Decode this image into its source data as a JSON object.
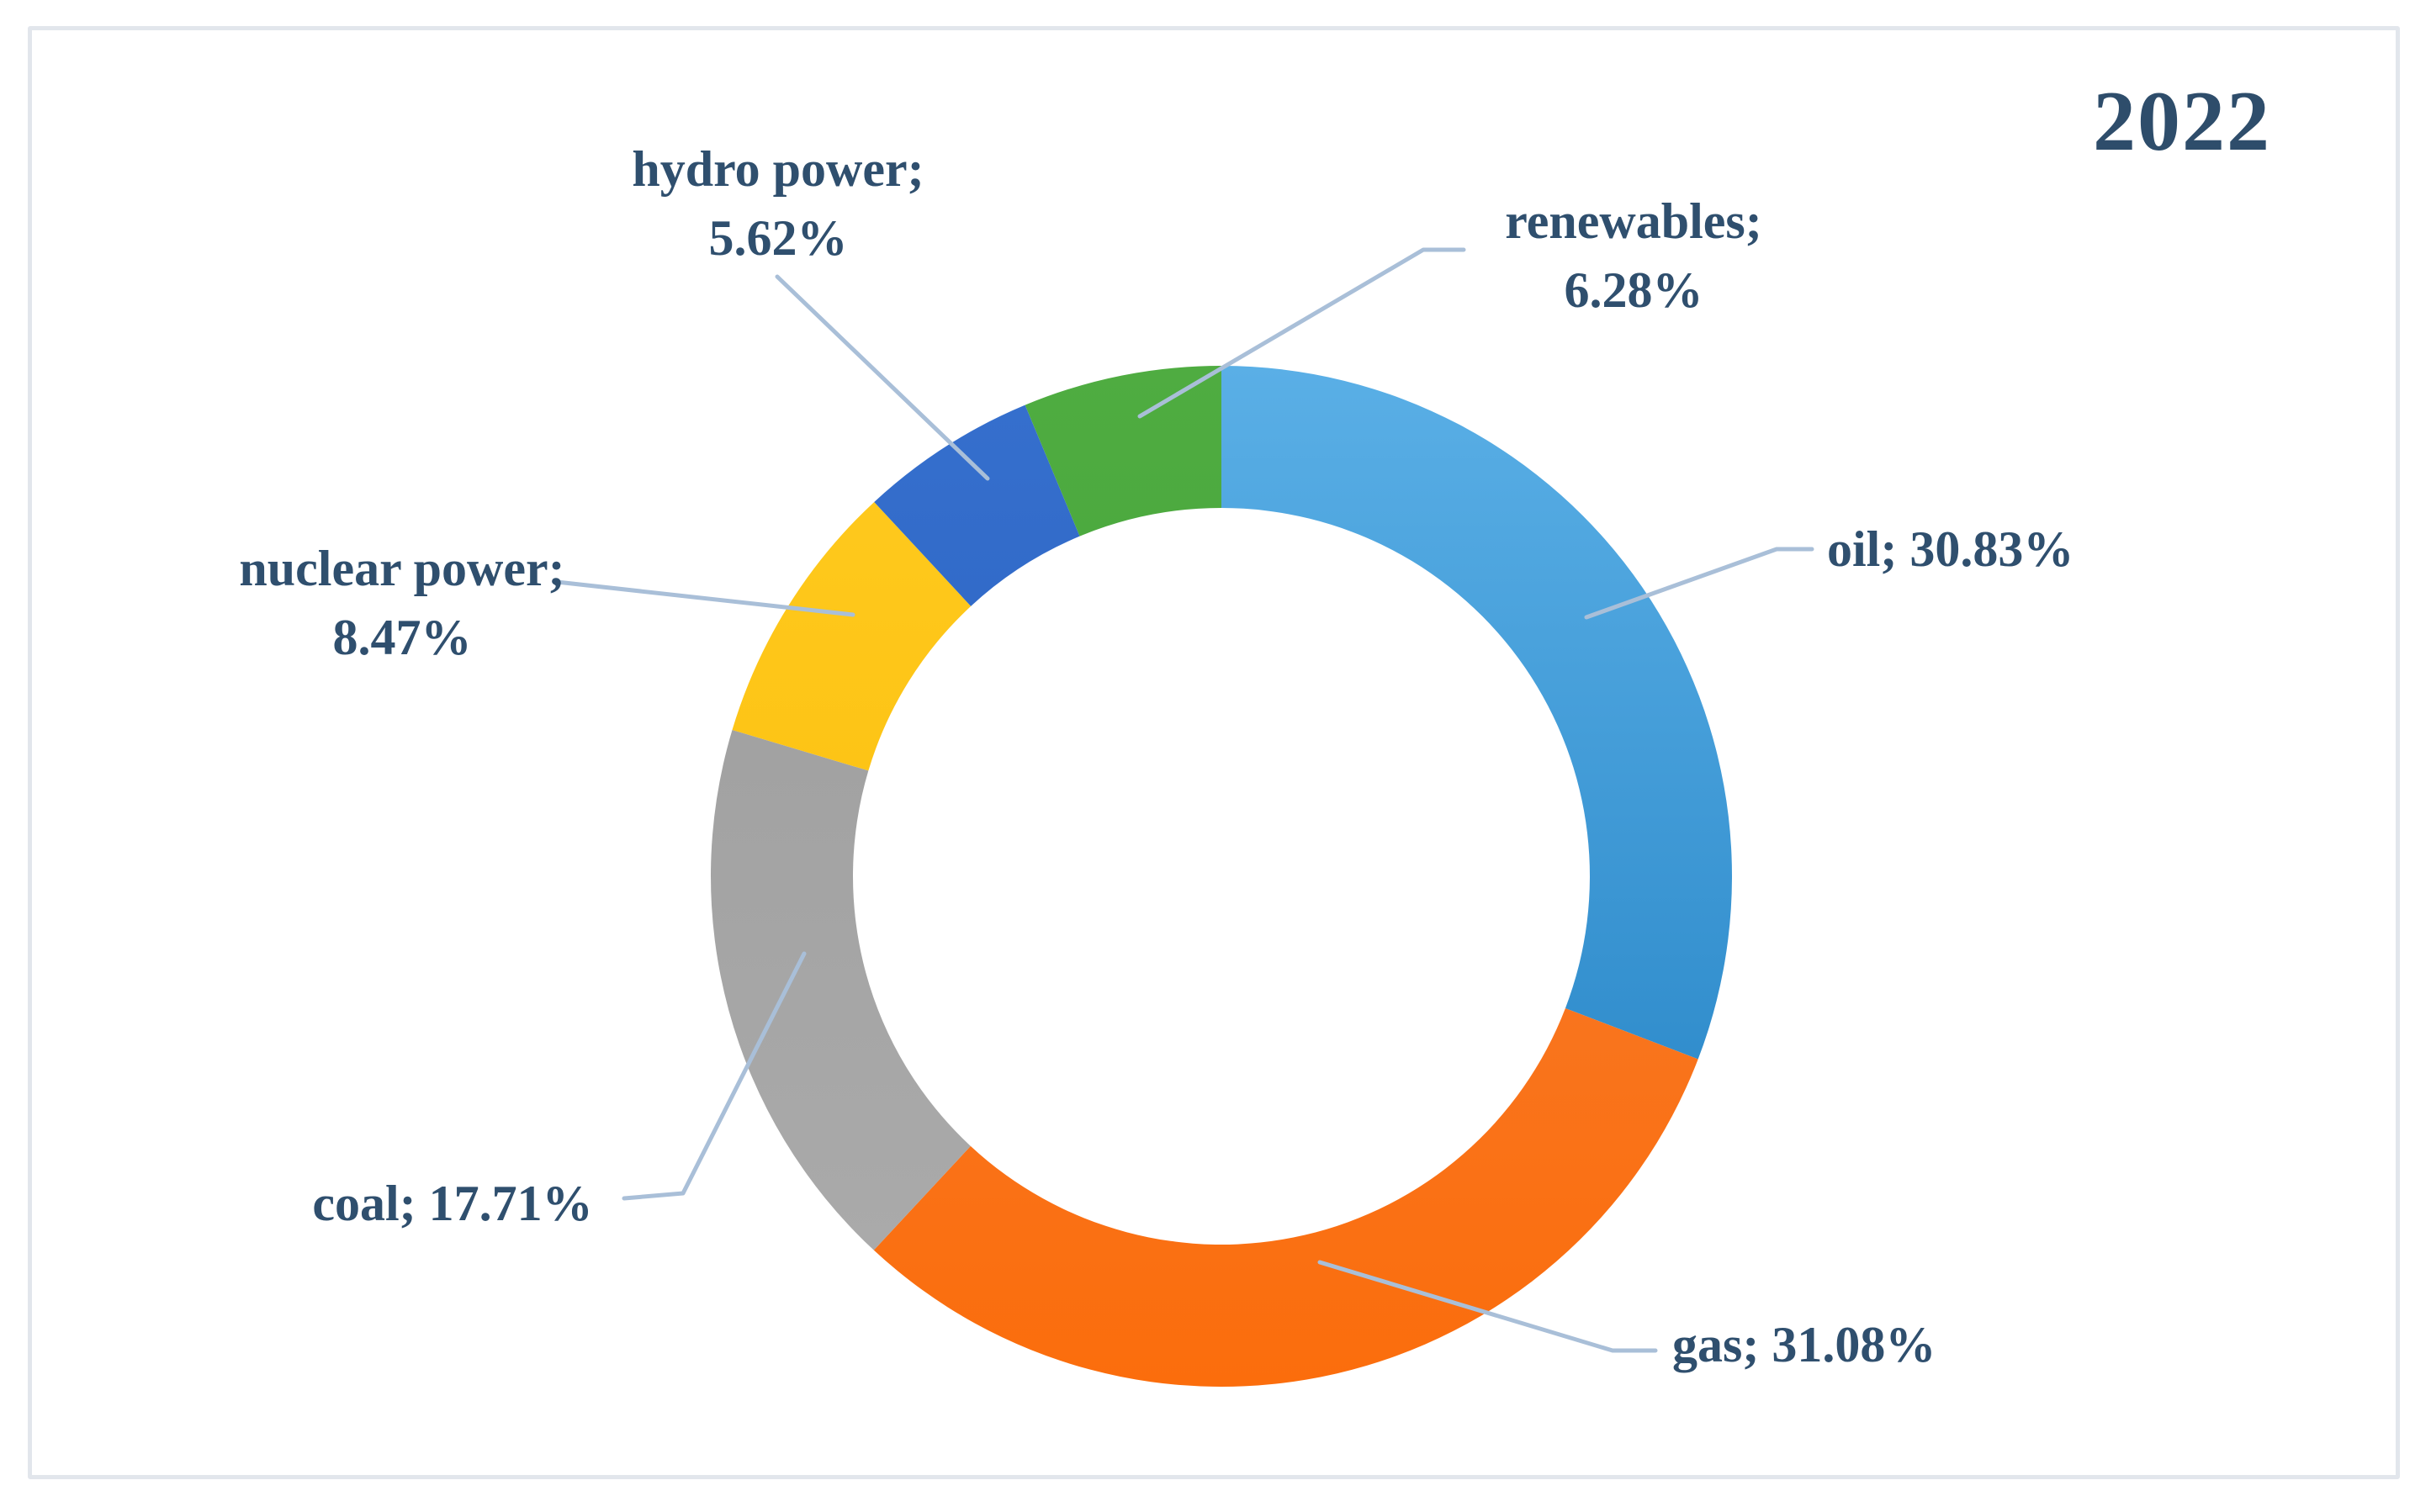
{
  "page": {
    "background": "#FFFFFF",
    "frame_border_color": "#E2E6EC"
  },
  "chart_data": {
    "type": "pie",
    "subtype": "donut",
    "title": "2022",
    "title_color": "#2E4D6B",
    "label_color": "#2F4F6E",
    "leader_line_color": "#A9BFD8",
    "start_angle_deg": 0,
    "direction": "clockwise",
    "hole_ratio": 0.72,
    "legend": "none",
    "categories": [
      "oil",
      "gas",
      "coal",
      "nuclear power",
      "hydro power",
      "renewables"
    ],
    "values": [
      30.83,
      31.08,
      17.71,
      8.47,
      5.62,
      6.28
    ],
    "slices": [
      {
        "name": "oil",
        "value": 30.83,
        "color": "#2E8FD0",
        "gradient": [
          "#5AAFE6",
          "#1E7EC1"
        ]
      },
      {
        "name": "gas",
        "value": 31.08,
        "color": "#FA7519",
        "gradient": [
          "#F5813B",
          "#FB6D0C"
        ]
      },
      {
        "name": "coal",
        "value": 17.71,
        "color": "#A3A3A3",
        "gradient": [
          "#9C9C9C",
          "#ACACAC"
        ]
      },
      {
        "name": "nuclear power",
        "value": 8.47,
        "color": "#FDC20D",
        "gradient": [
          "#FFCB20",
          "#FABA06"
        ]
      },
      {
        "name": "hydro power",
        "value": 5.62,
        "color": "#2B64C4",
        "gradient": [
          "#3670CE",
          "#2459B8"
        ]
      },
      {
        "name": "renewables",
        "value": 6.28,
        "color": "#48A53B",
        "gradient": [
          "#4FAC41",
          "#3FA035"
        ]
      }
    ],
    "labels": {
      "hydro": {
        "line1": "hydro power;",
        "line2": "5.62%"
      },
      "renewables": {
        "line1": "renewables;",
        "line2": "6.28%"
      },
      "oil": {
        "line1": "oil; 30.83%"
      },
      "gas": {
        "line1": "gas; 31.08%"
      },
      "coal": {
        "line1": "coal; 17.71%"
      },
      "nuclear": {
        "line1": "nuclear power;",
        "line2": "8.47%"
      }
    }
  }
}
